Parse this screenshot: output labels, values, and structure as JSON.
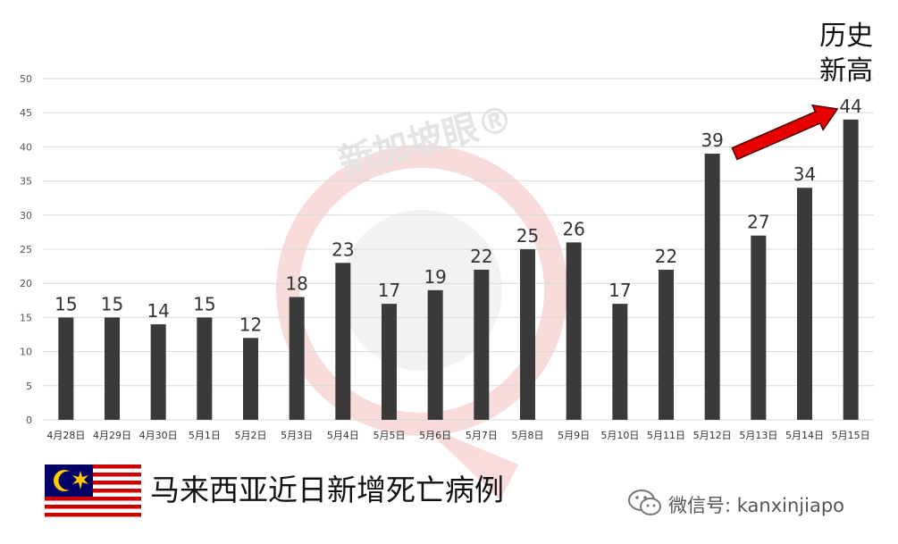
{
  "chart_data": {
    "type": "bar",
    "title": "",
    "xlabel": "",
    "ylabel": "",
    "ylim": [
      0,
      50
    ],
    "yticks": [
      0,
      5,
      10,
      15,
      20,
      25,
      30,
      35,
      40,
      45,
      50
    ],
    "grid": true,
    "categories": [
      "4月28日",
      "4月29日",
      "4月30日",
      "5月1日",
      "5月2日",
      "5月3日",
      "5月4日",
      "5月5日",
      "5月6日",
      "5月7日",
      "5月8日",
      "5月9日",
      "5月10日",
      "5月11日",
      "5月12日",
      "5月13日",
      "5月14日",
      "5月15日"
    ],
    "values": [
      15,
      15,
      14,
      15,
      12,
      18,
      23,
      17,
      19,
      22,
      25,
      26,
      17,
      22,
      39,
      27,
      34,
      44
    ],
    "bar_color": "#3a3a3a",
    "annotation": {
      "lines": [
        "历史",
        "新高"
      ],
      "target_category": "5月15日",
      "arrow_color": "#e60000"
    }
  },
  "watermark": {
    "text": "新加坡眼®",
    "color": "#f2b8b8"
  },
  "caption": "马来西亚近日新增死亡病例",
  "flag_icon": "malaysia-flag-icon",
  "wechat": {
    "icon": "wechat-icon",
    "text": "微信号: kanxinjiapo"
  }
}
